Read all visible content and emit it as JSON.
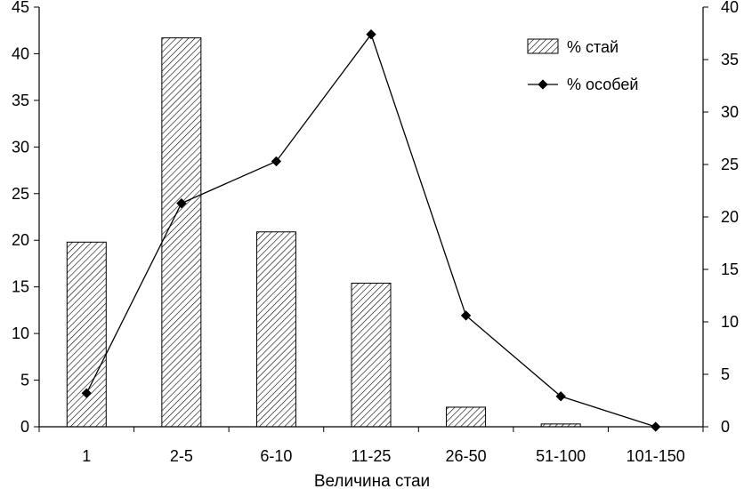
{
  "chart_data": {
    "type": "bar+line",
    "categories": [
      "1",
      "2-5",
      "6-10",
      "11-25",
      "26-50",
      "51-100",
      "101-150"
    ],
    "series": [
      {
        "name": "% стай",
        "kind": "bar",
        "axis": "left",
        "values": [
          19.8,
          41.7,
          20.9,
          15.4,
          2.1,
          0.3,
          0.0
        ]
      },
      {
        "name": "% особей",
        "kind": "line",
        "axis": "right",
        "values": [
          3.2,
          21.3,
          25.3,
          37.4,
          10.6,
          2.9,
          0.0
        ]
      }
    ],
    "xlabel": "Величина стаи",
    "ylim_left": [
      0,
      45
    ],
    "yticks_left": [
      "0",
      "5",
      "10",
      "15",
      "20",
      "25",
      "30",
      "35",
      "40",
      "45"
    ],
    "ylim_right": [
      0,
      40
    ],
    "yticks_right": [
      "0",
      "5",
      "10",
      "15",
      "20",
      "25",
      "30",
      "35",
      "40"
    ],
    "legend_position": "top-right",
    "grid": false
  }
}
